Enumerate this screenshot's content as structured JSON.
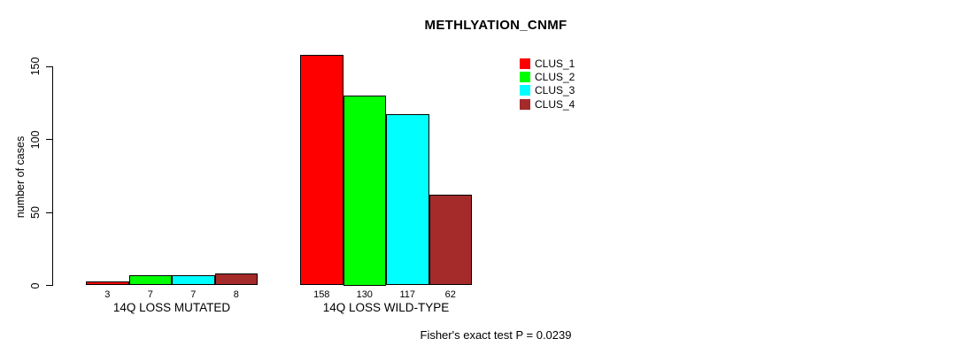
{
  "chart_data": {
    "type": "bar",
    "title": "METHLYATION_CNMF",
    "ylabel": "number of cases",
    "xlabel": "",
    "categories": [
      "14Q LOSS MUTATED",
      "14Q LOSS WILD-TYPE"
    ],
    "series": [
      {
        "name": "CLUS_1",
        "color": "#ff0000",
        "values": [
          3,
          158
        ]
      },
      {
        "name": "CLUS_2",
        "color": "#00ff00",
        "values": [
          7,
          130
        ]
      },
      {
        "name": "CLUS_3",
        "color": "#00ffff",
        "values": [
          7,
          117
        ]
      },
      {
        "name": "CLUS_4",
        "color": "#a52a2a",
        "values": [
          8,
          62
        ]
      }
    ],
    "yticks": [
      0,
      50,
      100,
      150
    ],
    "ylim": [
      0,
      160
    ],
    "grid": false,
    "legend_position": "top-right",
    "show_bar_values": true,
    "bar_border_color": "#000000",
    "axis_color": "#000000",
    "footnote": "Fisher's exact test P = 0.0239"
  }
}
